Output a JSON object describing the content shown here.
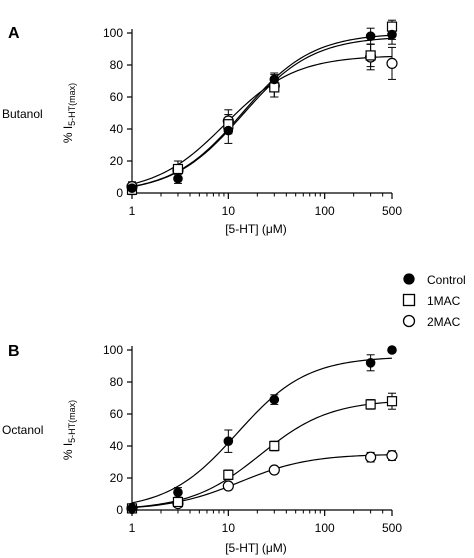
{
  "legend": {
    "entries": [
      {
        "label": "Control",
        "marker": "filled-circle"
      },
      {
        "label": "1MAC",
        "marker": "open-square"
      },
      {
        "label": "2MAC",
        "marker": "open-circle"
      }
    ],
    "placement": "right, between panels"
  },
  "chart_data": [
    {
      "type": "scatter",
      "panel_label": "A",
      "row_label": "Butanol",
      "title": "",
      "xlabel": "[5-HT] (μM)",
      "ylabel_main": "% I",
      "ylabel_sub": "5-HT(max)",
      "xscale": "log",
      "xlim": [
        1,
        500
      ],
      "ylim": [
        0,
        100
      ],
      "xticks": [
        1,
        10,
        100,
        500
      ],
      "yticks": [
        0,
        20,
        40,
        60,
        80,
        100
      ],
      "x": [
        1,
        3,
        10,
        30,
        300,
        500
      ],
      "grid": false,
      "fitted_curves": true,
      "series": [
        {
          "name": "Control",
          "marker": "filled-circle",
          "values": [
            3,
            9,
            39,
            71,
            98,
            99
          ],
          "errors": [
            3,
            3,
            8,
            4,
            5,
            6
          ],
          "fit_max": 98
        },
        {
          "name": "1MAC",
          "marker": "open-square",
          "values": [
            2,
            15,
            43,
            66,
            86,
            104
          ],
          "errors": [
            3,
            5,
            6,
            6,
            7,
            8
          ],
          "fit_max": 100
        },
        {
          "name": "2MAC",
          "marker": "open-circle",
          "values": [
            4,
            14,
            45,
            67,
            85,
            81
          ],
          "errors": [
            3,
            6,
            7,
            7,
            8,
            10
          ],
          "fit_max": 86
        }
      ]
    },
    {
      "type": "scatter",
      "panel_label": "B",
      "row_label": "Octanol",
      "title": "",
      "xlabel": "[5-HT] (μM)",
      "ylabel_main": "% I",
      "ylabel_sub": "5-HT(max)",
      "xscale": "log",
      "xlim": [
        1,
        500
      ],
      "ylim": [
        0,
        100
      ],
      "xticks": [
        1,
        10,
        100,
        500
      ],
      "yticks": [
        0,
        20,
        40,
        60,
        80,
        100
      ],
      "x": [
        1,
        3,
        10,
        30,
        300,
        500
      ],
      "grid": false,
      "fitted_curves": true,
      "series": [
        {
          "name": "Control",
          "marker": "filled-circle",
          "values": [
            1,
            11,
            43,
            69,
            92,
            100
          ],
          "errors": [
            2,
            3,
            7,
            3,
            5,
            0
          ],
          "fit_max": 96
        },
        {
          "name": "1MAC",
          "marker": "open-square",
          "values": [
            1,
            5,
            22,
            40,
            66,
            68
          ],
          "errors": [
            2,
            2,
            3,
            3,
            3,
            5
          ],
          "fit_max": 69
        },
        {
          "name": "2MAC",
          "marker": "open-circle",
          "values": [
            1,
            4,
            15,
            25,
            33,
            34
          ],
          "errors": [
            2,
            2,
            2,
            2,
            3,
            3
          ],
          "fit_max": 35
        }
      ]
    }
  ]
}
